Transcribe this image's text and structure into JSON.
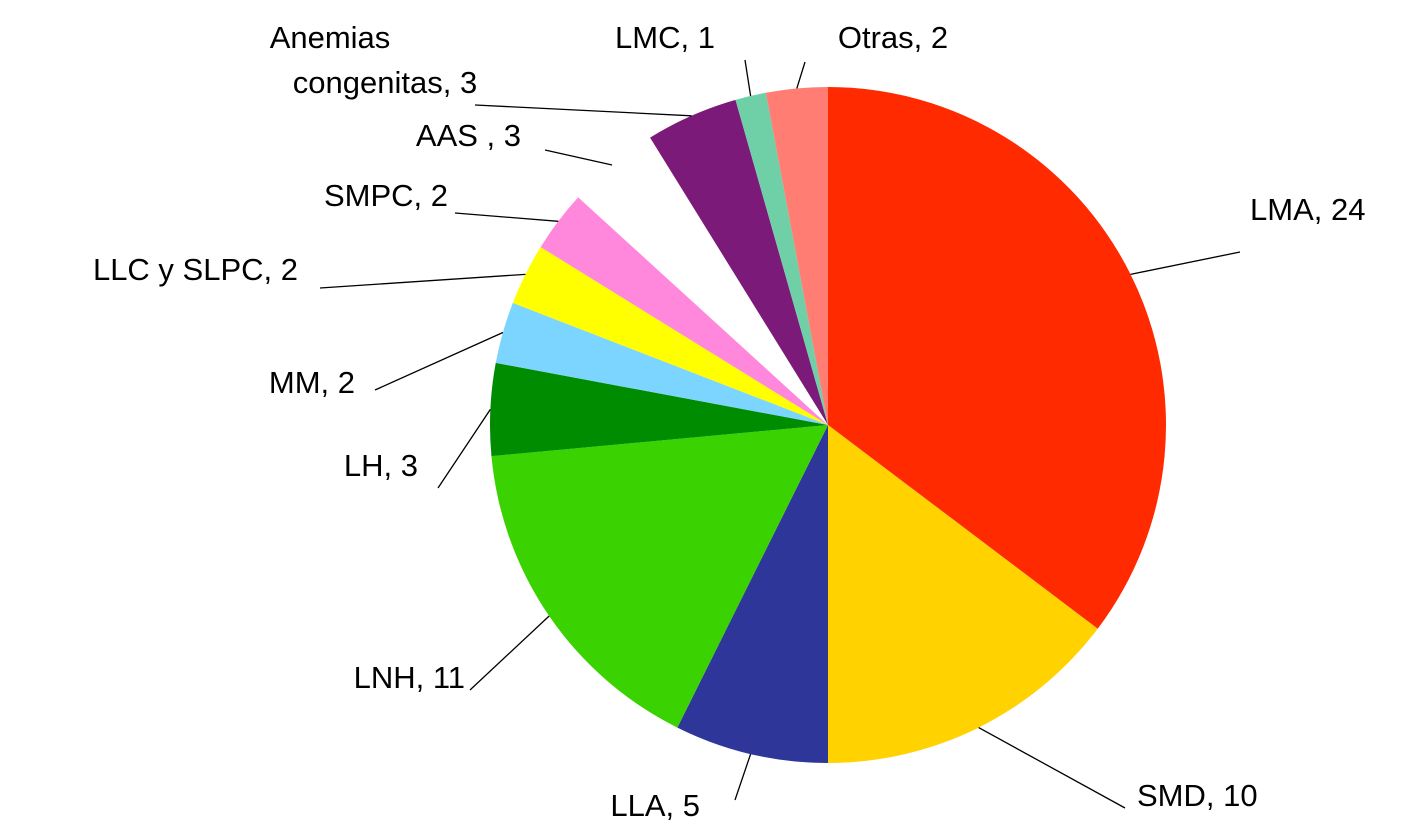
{
  "chart_data": {
    "type": "pie",
    "categories": [
      "LMA",
      "SMD",
      "LLA",
      "LNH",
      "LH",
      "MM",
      "LLC y SLPC",
      "SMPC",
      "AAS",
      "Anemias congenitas",
      "LMC",
      "Otras"
    ],
    "values": [
      24,
      10,
      5,
      11,
      3,
      2,
      2,
      2,
      3,
      3,
      1,
      2
    ],
    "value_labels": [
      "LMA, 24",
      "SMD, 10",
      "LLA, 5",
      "LNH, 11",
      "LH, 3",
      "MM, 2",
      "LLC y SLPC, 2",
      "SMPC, 2",
      "AAS , 3",
      "Anemias congenitas, 3",
      "LMC, 1",
      "Otras, 2"
    ],
    "colors": [
      "#ff2a00",
      "#ffd200",
      "#2e3699",
      "#3ad200",
      "#008c00",
      "#7bd5ff",
      "#ffff00",
      "#ff88dd",
      "#ffffff",
      "#7b1a78",
      "#6fd0a8",
      "#ff7d72"
    ]
  }
}
